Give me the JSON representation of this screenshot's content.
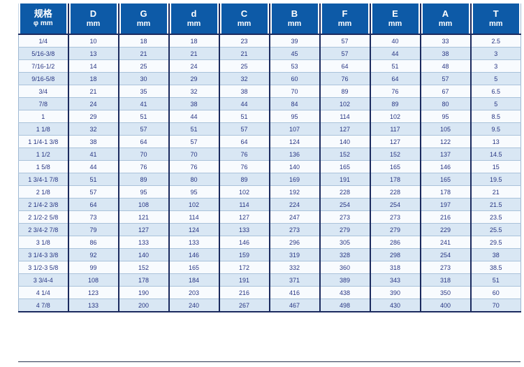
{
  "colors": {
    "header_bg": "#0d5aa7",
    "header_text": "#ffffff",
    "cell_text": "#273582",
    "row_light": "#f8fbfe",
    "row_shaded": "#d9e7f4",
    "column_divider": "#1b2a5e",
    "row_line": "#a9c2da"
  },
  "table": {
    "spec_header": {
      "line1": "规格",
      "line2": "φ mm"
    },
    "columns": [
      {
        "letter": "D",
        "unit": "mm"
      },
      {
        "letter": "G",
        "unit": "mm"
      },
      {
        "letter": "d",
        "unit": "mm"
      },
      {
        "letter": "C",
        "unit": "mm"
      },
      {
        "letter": "B",
        "unit": "mm"
      },
      {
        "letter": "F",
        "unit": "mm"
      },
      {
        "letter": "E",
        "unit": "mm"
      },
      {
        "letter": "A",
        "unit": "mm"
      },
      {
        "letter": "T",
        "unit": "mm"
      }
    ],
    "rows": [
      {
        "spec": "1/4",
        "values": [
          "10",
          "18",
          "18",
          "23",
          "39",
          "57",
          "40",
          "33",
          "2.5"
        ]
      },
      {
        "spec": "5/16-3/8",
        "values": [
          "13",
          "21",
          "21",
          "21",
          "45",
          "57",
          "44",
          "38",
          "3"
        ]
      },
      {
        "spec": "7/16-1/2",
        "values": [
          "14",
          "25",
          "24",
          "25",
          "53",
          "64",
          "51",
          "48",
          "3"
        ]
      },
      {
        "spec": "9/16-5/8",
        "values": [
          "18",
          "30",
          "29",
          "32",
          "60",
          "76",
          "64",
          "57",
          "5"
        ]
      },
      {
        "spec": "3/4",
        "values": [
          "21",
          "35",
          "32",
          "38",
          "70",
          "89",
          "76",
          "67",
          "6.5"
        ]
      },
      {
        "spec": "7/8",
        "values": [
          "24",
          "41",
          "38",
          "44",
          "84",
          "102",
          "89",
          "80",
          "5"
        ]
      },
      {
        "spec": "1",
        "values": [
          "29",
          "51",
          "44",
          "51",
          "95",
          "114",
          "102",
          "95",
          "8.5"
        ]
      },
      {
        "spec": "1 1/8",
        "values": [
          "32",
          "57",
          "51",
          "57",
          "107",
          "127",
          "117",
          "105",
          "9.5"
        ]
      },
      {
        "spec": "1 1/4-1 3/8",
        "values": [
          "38",
          "64",
          "57",
          "64",
          "124",
          "140",
          "127",
          "122",
          "13"
        ]
      },
      {
        "spec": "1 1/2",
        "values": [
          "41",
          "70",
          "70",
          "76",
          "136",
          "152",
          "152",
          "137",
          "14.5"
        ]
      },
      {
        "spec": "1 5/8",
        "values": [
          "44",
          "76",
          "76",
          "76",
          "140",
          "165",
          "165",
          "146",
          "15"
        ]
      },
      {
        "spec": "1 3/4-1 7/8",
        "values": [
          "51",
          "89",
          "80",
          "89",
          "169",
          "191",
          "178",
          "165",
          "19.5"
        ]
      },
      {
        "spec": "2 1/8",
        "values": [
          "57",
          "95",
          "95",
          "102",
          "192",
          "228",
          "228",
          "178",
          "21"
        ]
      },
      {
        "spec": "2 1/4-2 3/8",
        "values": [
          "64",
          "108",
          "102",
          "114",
          "224",
          "254",
          "254",
          "197",
          "21.5"
        ]
      },
      {
        "spec": "2 1/2-2 5/8",
        "values": [
          "73",
          "121",
          "114",
          "127",
          "247",
          "273",
          "273",
          "216",
          "23.5"
        ]
      },
      {
        "spec": "2 3/4-2 7/8",
        "values": [
          "79",
          "127",
          "124",
          "133",
          "273",
          "279",
          "279",
          "229",
          "25.5"
        ]
      },
      {
        "spec": "3 1/8",
        "values": [
          "86",
          "133",
          "133",
          "146",
          "296",
          "305",
          "286",
          "241",
          "29.5"
        ]
      },
      {
        "spec": "3 1/4-3 3/8",
        "values": [
          "92",
          "140",
          "146",
          "159",
          "319",
          "328",
          "298",
          "254",
          "38"
        ]
      },
      {
        "spec": "3 1/2-3 5/8",
        "values": [
          "99",
          "152",
          "165",
          "172",
          "332",
          "360",
          "318",
          "273",
          "38.5"
        ]
      },
      {
        "spec": "3 3/4-4",
        "values": [
          "108",
          "178",
          "184",
          "191",
          "371",
          "389",
          "343",
          "318",
          "51"
        ]
      },
      {
        "spec": "4 1/4",
        "values": [
          "123",
          "190",
          "203",
          "216",
          "416",
          "438",
          "390",
          "350",
          "60"
        ]
      },
      {
        "spec": "4 7/8",
        "values": [
          "133",
          "200",
          "240",
          "267",
          "467",
          "498",
          "430",
          "400",
          "70"
        ]
      }
    ]
  }
}
